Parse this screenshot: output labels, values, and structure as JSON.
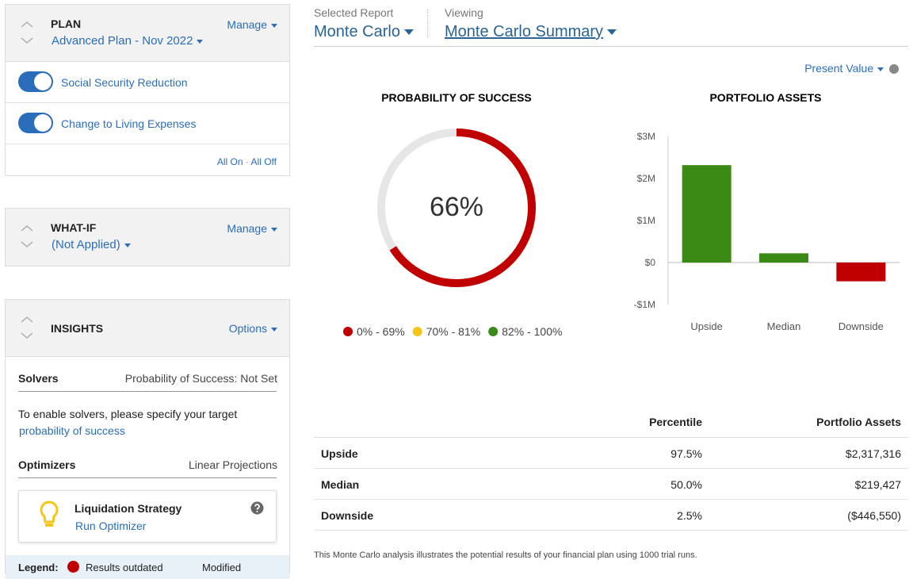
{
  "sidebar": {
    "plan": {
      "title": "PLAN",
      "manage": "Manage",
      "name": "Advanced Plan - Nov 2022",
      "toggles": [
        "Social Security Reduction",
        "Change to Living Expenses"
      ],
      "all_on": "All On",
      "separator": "·",
      "all_off": "All Off"
    },
    "whatif": {
      "title": "WHAT-IF",
      "manage": "Manage",
      "name": "(Not Applied)"
    },
    "insights": {
      "title": "INSIGHTS",
      "options": "Options",
      "solvers": "Solvers",
      "solvers_status": "Probability of Success: Not Set",
      "solvers_text": "To enable solvers, please specify your target",
      "solvers_link": "probability of success",
      "optimizers": "Optimizers",
      "optimizers_status": "Linear Projections",
      "card_title": "Liquidation Strategy",
      "card_link": "Run Optimizer"
    },
    "legend": {
      "label": "Legend:",
      "outdated": "Results outdated",
      "modified": "Modified"
    }
  },
  "header": {
    "report_label": "Selected Report",
    "report": "Monte Carlo",
    "viewing_label": "Viewing",
    "viewing": "Monte Carlo Summary",
    "present_value": "Present Value"
  },
  "chart_data": [
    {
      "type": "gauge",
      "title": "PROBABILITY OF SUCCESS",
      "value": 66,
      "value_label": "66%",
      "range": [
        0,
        100
      ],
      "color": "#c00000",
      "track_color": "#e6e6e6",
      "ranges": [
        {
          "label": "0% - 69%",
          "color": "#c00000"
        },
        {
          "label": "70% - 81%",
          "color": "#f5c518"
        },
        {
          "label": "82% - 100%",
          "color": "#3c8a16"
        }
      ]
    },
    {
      "type": "bar",
      "title": "PORTFOLIO ASSETS",
      "categories": [
        "Upside",
        "Median",
        "Downside"
      ],
      "values": [
        2317316,
        219427,
        -446550
      ],
      "colors": [
        "#3c8a16",
        "#3c8a16",
        "#c00000"
      ],
      "ylim": [
        -1000000,
        3000000
      ],
      "yticks": [
        {
          "value": -1000000,
          "label": "-$1M"
        },
        {
          "value": 0,
          "label": "$0"
        },
        {
          "value": 1000000,
          "label": "$1M"
        },
        {
          "value": 2000000,
          "label": "$2M"
        },
        {
          "value": 3000000,
          "label": "$3M"
        }
      ],
      "grid": false
    }
  ],
  "table": {
    "headers": [
      "Percentile",
      "Portfolio Assets"
    ],
    "rows": [
      [
        "Upside",
        "97.5%",
        "$2,317,316"
      ],
      [
        "Median",
        "50.0%",
        "$219,427"
      ],
      [
        "Downside",
        "2.5%",
        "($446,550)"
      ]
    ]
  },
  "footnote": "This Monte Carlo analysis illustrates the potential results of your financial plan using 1000 trial runs."
}
